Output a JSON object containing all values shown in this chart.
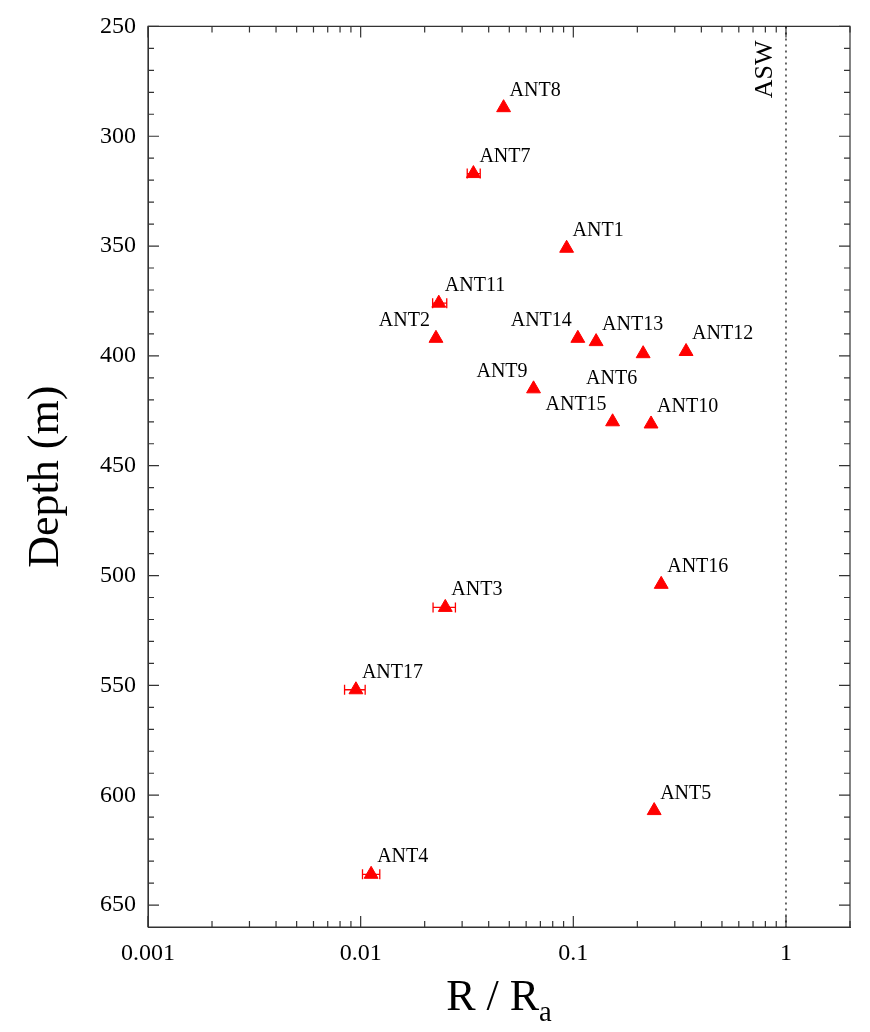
{
  "chart_data": {
    "type": "scatter",
    "xlabel": "R / R$_{a}$",
    "ylabel": "Depth (m)",
    "log": "x",
    "marker": "triangle",
    "grid": false,
    "xlim": [
      0.001,
      2
    ],
    "ylim": [
      660,
      250
    ],
    "xticks": [
      0.001,
      {
        "value": 0.002,
        "label": null
      },
      {
        "value": 0.003,
        "label": null
      },
      {
        "value": 0.004,
        "label": null
      },
      {
        "value": 0.005,
        "label": null
      },
      {
        "value": 0.006,
        "label": null
      },
      {
        "value": 0.007,
        "label": null
      },
      {
        "value": 0.008,
        "label": null
      },
      {
        "value": 0.009,
        "label": null
      },
      0.01,
      {
        "value": 0.02,
        "label": null
      },
      {
        "value": 0.03,
        "label": null
      },
      {
        "value": 0.04,
        "label": null
      },
      {
        "value": 0.05,
        "label": null
      },
      {
        "value": 0.06,
        "label": null
      },
      {
        "value": 0.07,
        "label": null
      },
      {
        "value": 0.08,
        "label": null
      },
      {
        "value": 0.09,
        "label": null
      },
      0.1,
      {
        "value": 0.2,
        "label": null
      },
      {
        "value": 0.3,
        "label": null
      },
      {
        "value": 0.4,
        "label": null
      },
      {
        "value": 0.5,
        "label": null
      },
      {
        "value": 0.6,
        "label": null
      },
      {
        "value": 0.7,
        "label": null
      },
      {
        "value": 0.8,
        "label": null
      },
      {
        "value": 0.9,
        "label": null
      },
      1,
      {
        "value": 2,
        "label": null
      }
    ],
    "yticks": [
      250,
      {
        "value": 260,
        "label": null
      },
      {
        "value": 270,
        "label": null
      },
      {
        "value": 280,
        "label": null
      },
      {
        "value": 290,
        "label": null
      },
      300,
      {
        "value": 310,
        "label": null
      },
      {
        "value": 320,
        "label": null
      },
      {
        "value": 330,
        "label": null
      },
      {
        "value": 340,
        "label": null
      },
      350,
      {
        "value": 360,
        "label": null
      },
      {
        "value": 370,
        "label": null
      },
      {
        "value": 380,
        "label": null
      },
      {
        "value": 390,
        "label": null
      },
      400,
      {
        "value": 410,
        "label": null
      },
      {
        "value": 420,
        "label": null
      },
      {
        "value": 430,
        "label": null
      },
      {
        "value": 440,
        "label": null
      },
      450,
      {
        "value": 460,
        "label": null
      },
      {
        "value": 470,
        "label": null
      },
      {
        "value": 480,
        "label": null
      },
      {
        "value": 490,
        "label": null
      },
      500,
      {
        "value": 510,
        "label": null
      },
      {
        "value": 520,
        "label": null
      },
      {
        "value": 530,
        "label": null
      },
      {
        "value": 540,
        "label": null
      },
      550,
      {
        "value": 560,
        "label": null
      },
      {
        "value": 570,
        "label": null
      },
      {
        "value": 580,
        "label": null
      },
      {
        "value": 590,
        "label": null
      },
      600,
      {
        "value": 610,
        "label": null
      },
      {
        "value": 620,
        "label": null
      },
      {
        "value": 630,
        "label": null
      },
      {
        "value": 640,
        "label": null
      },
      650
    ],
    "series": [
      {
        "color": "#ff0000",
        "x": [
          0.093,
          0.0226,
          0.025,
          0.0112,
          0.24,
          0.213,
          0.0339,
          0.047,
          0.065,
          0.232,
          0.0233,
          0.339,
          0.128,
          0.105,
          0.153,
          0.259,
          0.0095
        ],
        "values": [
          351,
          392,
          514.5,
          636,
          607,
          399,
          317,
          287,
          415,
          431,
          376,
          398,
          393.5,
          392,
          430,
          504,
          552
        ],
        "xerrors": [
          null,
          null,
          [
            0.0219,
            0.0279
          ],
          [
            0.0102,
            0.0123
          ],
          null,
          null,
          [
            0.0317,
            0.0365
          ],
          null,
          null,
          null,
          [
            0.0218,
            0.0254
          ],
          null,
          null,
          null,
          null,
          null,
          [
            0.0084,
            0.0105
          ]
        ]
      }
    ],
    "ref_lines": [
      {
        "axis": "x",
        "value": 1,
        "label": "ASW",
        "color": "#000000",
        "line_style": "dotted"
      }
    ],
    "annotations": [
      {
        "text": "ANT1",
        "x": 0.093,
        "y": 351
      },
      {
        "text": "ANT2",
        "x": 0.0226,
        "y": 392
      },
      {
        "text": "ANT3",
        "x": 0.025,
        "y": 514.5
      },
      {
        "text": "ANT4",
        "x": 0.0112,
        "y": 636
      },
      {
        "text": "ANT5",
        "x": 0.24,
        "y": 607
      },
      {
        "text": "ANT6",
        "x": 0.213,
        "y": 399
      },
      {
        "text": "ANT7",
        "x": 0.0339,
        "y": 317
      },
      {
        "text": "ANT8",
        "x": 0.047,
        "y": 287
      },
      {
        "text": "ANT9",
        "x": 0.065,
        "y": 415
      },
      {
        "text": "ANT10",
        "x": 0.232,
        "y": 431
      },
      {
        "text": "ANT11",
        "x": 0.0233,
        "y": 376
      },
      {
        "text": "ANT12",
        "x": 0.339,
        "y": 398
      },
      {
        "text": "ANT13",
        "x": 0.128,
        "y": 393.5
      },
      {
        "text": "ANT14",
        "x": 0.105,
        "y": 392
      },
      {
        "text": "ANT15",
        "x": 0.153,
        "y": 430
      },
      {
        "text": "ANT16",
        "x": 0.259,
        "y": 504
      },
      {
        "text": "ANT17",
        "x": 0.0095,
        "y": 552
      }
    ]
  }
}
